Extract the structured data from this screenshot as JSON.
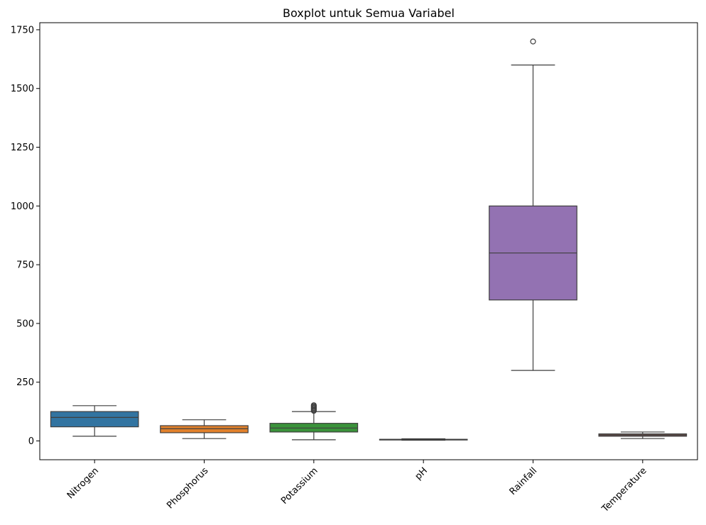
{
  "chart_data": {
    "type": "boxplot",
    "title": "Boxplot untuk Semua Variabel",
    "xlabel": "",
    "ylabel": "",
    "ylim": [
      -80,
      1780
    ],
    "yticks": [
      0,
      250,
      500,
      750,
      1000,
      1250,
      1500,
      1750
    ],
    "ytick_labels": [
      "0",
      "250",
      "500",
      "750",
      "1000",
      "1250",
      "1500",
      "1750"
    ],
    "grid": false,
    "categories": [
      "Nitrogen",
      "Phosphorus",
      "Potassium",
      "pH",
      "Rainfall",
      "Temperature"
    ],
    "boxes": [
      {
        "name": "Nitrogen",
        "color": "#3274a1",
        "whisker_low": 20,
        "q1": 60,
        "median": 100,
        "q3": 125,
        "whisker_high": 150,
        "outliers": []
      },
      {
        "name": "Phosphorus",
        "color": "#e1812c",
        "whisker_low": 10,
        "q1": 35,
        "median": 52,
        "q3": 65,
        "whisker_high": 90,
        "outliers": []
      },
      {
        "name": "Potassium",
        "color": "#3a923a",
        "whisker_low": 5,
        "q1": 38,
        "median": 55,
        "q3": 75,
        "whisker_high": 125,
        "outliers": [
          128,
          132,
          136,
          140,
          144,
          148,
          152
        ]
      },
      {
        "name": "pH",
        "color": "#c03d3e",
        "whisker_low": 3,
        "q1": 5,
        "median": 6,
        "q3": 7,
        "whisker_high": 9,
        "outliers": []
      },
      {
        "name": "Rainfall",
        "color": "#9372b2",
        "whisker_low": 300,
        "q1": 600,
        "median": 800,
        "q3": 1000,
        "whisker_high": 1600,
        "outliers": [
          1700
        ]
      },
      {
        "name": "Temperature",
        "color": "#845b53",
        "whisker_low": 10,
        "q1": 20,
        "median": 25,
        "q3": 30,
        "whisker_high": 38,
        "outliers": []
      }
    ]
  }
}
